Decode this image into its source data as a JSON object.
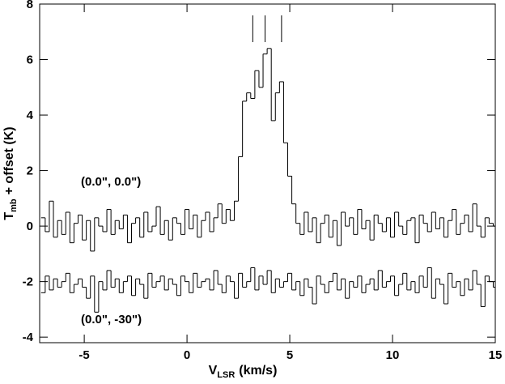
{
  "chart_data": {
    "type": "step",
    "xlabel": {
      "main": "V",
      "sub": "LSR",
      "rest": "(km/s)"
    },
    "ylabel": {
      "main": "T",
      "sub": "mb",
      "rest": "+ offset (K)"
    },
    "xlim": [
      -7.17,
      15
    ],
    "ylim": [
      -4.2,
      8
    ],
    "xticks": [
      -5,
      0,
      5,
      10,
      15
    ],
    "yticks": [
      -4,
      -2,
      0,
      2,
      4,
      6,
      8
    ],
    "x": [
      -7.0,
      -6.8,
      -6.6,
      -6.4,
      -6.2,
      -6.0,
      -5.8,
      -5.6,
      -5.4,
      -5.2,
      -5.0,
      -4.8,
      -4.6,
      -4.4,
      -4.2,
      -4.0,
      -3.8,
      -3.6,
      -3.4,
      -3.2,
      -3.0,
      -2.8,
      -2.6,
      -2.4,
      -2.2,
      -2.0,
      -1.8,
      -1.6,
      -1.4,
      -1.2,
      -1.0,
      -0.8,
      -0.6,
      -0.4,
      -0.2,
      0.0,
      0.2,
      0.4,
      0.6,
      0.8,
      1.0,
      1.2,
      1.4,
      1.6,
      1.8,
      2.0,
      2.2,
      2.4,
      2.6,
      2.8,
      3.0,
      3.2,
      3.4,
      3.6,
      3.8,
      4.0,
      4.2,
      4.4,
      4.6,
      4.8,
      5.0,
      5.2,
      5.4,
      5.6,
      5.8,
      6.0,
      6.2,
      6.4,
      6.6,
      6.8,
      7.0,
      7.2,
      7.4,
      7.6,
      7.8,
      8.0,
      8.2,
      8.4,
      8.6,
      8.8,
      9.0,
      9.2,
      9.4,
      9.6,
      9.8,
      10.0,
      10.2,
      10.4,
      10.6,
      10.8,
      11.0,
      11.2,
      11.4,
      11.6,
      11.8,
      12.0,
      12.2,
      12.4,
      12.6,
      12.8,
      13.0,
      13.2,
      13.4,
      13.6,
      13.8,
      14.0,
      14.2,
      14.4,
      14.6,
      14.8,
      15.0
    ],
    "series": [
      {
        "name": "(0.0\", 0.0\")",
        "color": "#000000",
        "values": [
          0.3,
          -0.2,
          0.9,
          -0.4,
          0.2,
          -0.3,
          0.5,
          -0.6,
          0.1,
          0.4,
          -0.5,
          0.2,
          -0.9,
          0.3,
          0.0,
          -0.2,
          0.6,
          -0.3,
          0.2,
          -0.1,
          0.4,
          -0.6,
          0.1,
          0.3,
          -0.4,
          0.5,
          -0.2,
          0.0,
          0.7,
          -0.3,
          0.2,
          -0.5,
          0.3,
          0.1,
          -0.3,
          0.6,
          -0.1,
          0.4,
          -0.4,
          0.2,
          0.5,
          -0.2,
          0.3,
          0.8,
          0.1,
          0.6,
          0.2,
          0.9,
          2.5,
          4.5,
          4.8,
          4.6,
          5.6,
          5.0,
          6.2,
          6.4,
          3.8,
          4.8,
          5.2,
          3.0,
          1.8,
          0.8,
          0.1,
          -0.3,
          0.5,
          -0.2,
          0.3,
          -0.6,
          0.1,
          0.4,
          -0.4,
          0.2,
          -0.7,
          0.5,
          0.0,
          0.3,
          -0.3,
          0.6,
          -0.1,
          0.2,
          -0.5,
          0.4,
          0.1,
          -0.2,
          0.3,
          -0.4,
          0.5,
          0.0,
          -0.3,
          0.2,
          0.3,
          -0.6,
          0.4,
          0.1,
          -0.2,
          0.5,
          -0.1,
          0.3,
          -0.4,
          0.2,
          0.6,
          -0.3,
          0.1,
          0.4,
          -0.2,
          0.8,
          0.0,
          -0.4,
          0.3,
          0.1,
          0.0
        ]
      },
      {
        "name": "(0.0\", -30\")",
        "color": "#000000",
        "values": [
          -2.4,
          -1.8,
          -2.3,
          -1.9,
          -2.2,
          -2.0,
          -1.7,
          -2.4,
          -2.1,
          -1.9,
          -2.2,
          -2.6,
          -1.8,
          -3.1,
          -2.0,
          -2.3,
          -1.6,
          -2.2,
          -1.9,
          -2.4,
          -2.0,
          -1.8,
          -2.5,
          -1.9,
          -2.1,
          -2.6,
          -1.7,
          -2.2,
          -2.0,
          -1.8,
          -2.3,
          -1.9,
          -2.1,
          -2.5,
          -1.8,
          -2.0,
          -2.4,
          -1.7,
          -2.2,
          -2.0,
          -1.9,
          -2.3,
          -1.6,
          -2.1,
          -2.4,
          -1.8,
          -2.0,
          -2.6,
          -1.7,
          -2.2,
          -2.0,
          -1.5,
          -2.3,
          -1.8,
          -2.1,
          -1.6,
          -2.4,
          -1.9,
          -2.2,
          -2.0,
          -1.7,
          -2.3,
          -2.0,
          -2.5,
          -1.9,
          -2.2,
          -2.8,
          -1.8,
          -2.1,
          -2.4,
          -2.0,
          -1.7,
          -2.3,
          -1.9,
          -2.6,
          -2.0,
          -2.2,
          -1.8,
          -2.4,
          -2.1,
          -1.9,
          -2.3,
          -1.6,
          -2.2,
          -2.0,
          -1.8,
          -2.5,
          -2.1,
          -1.7,
          -2.3,
          -2.0,
          -2.4,
          -1.8,
          -2.2,
          -1.5,
          -2.6,
          -1.9,
          -2.1,
          -2.8,
          -1.7,
          -2.2,
          -2.0,
          -2.5,
          -1.9,
          -2.3,
          -1.6,
          -2.1,
          -2.9,
          -1.8,
          -2.0,
          -2.2
        ]
      }
    ],
    "line_markers": [
      3.2,
      3.8,
      4.6
    ]
  }
}
